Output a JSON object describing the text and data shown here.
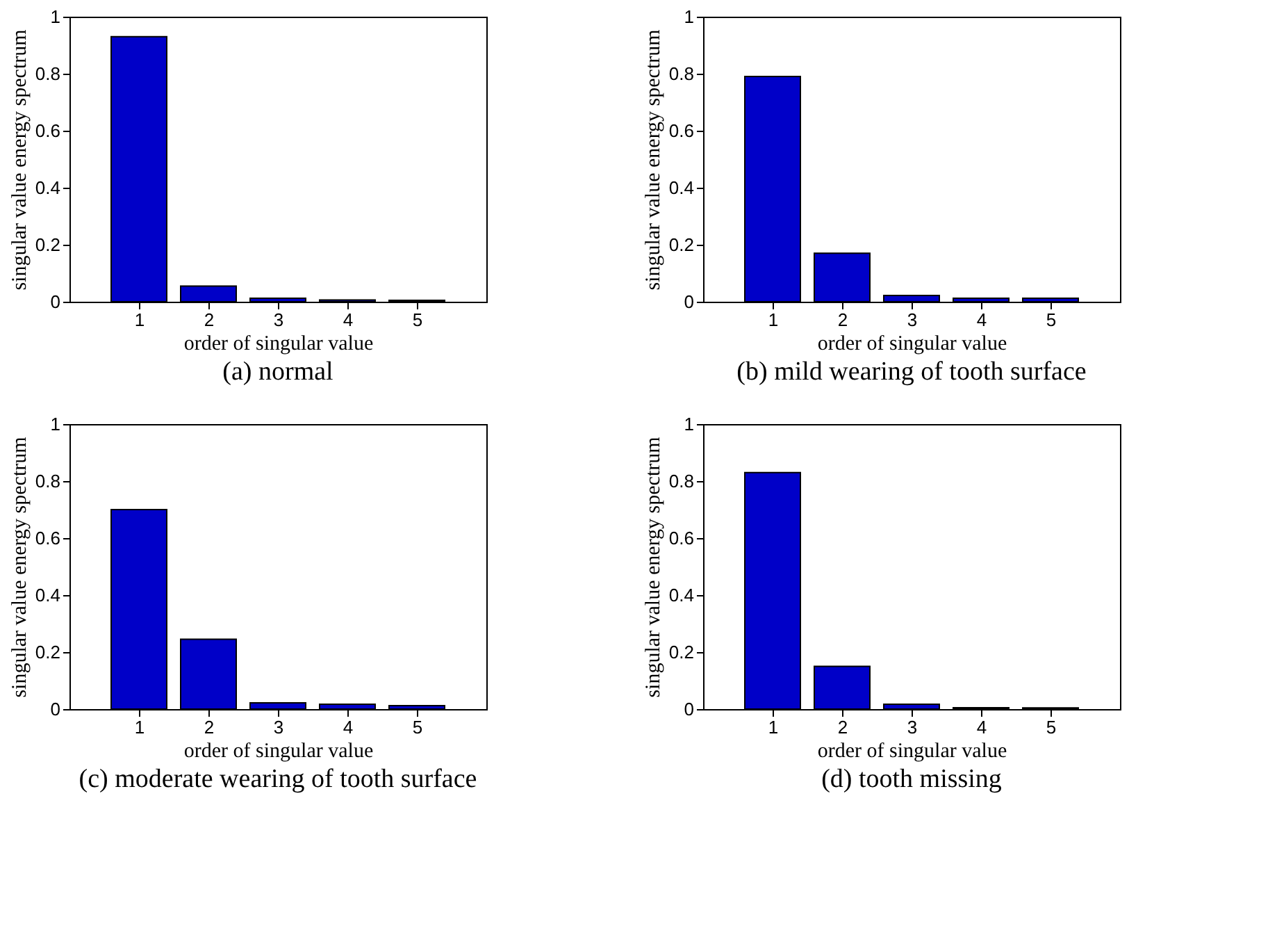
{
  "chart_data": [
    {
      "type": "bar",
      "title": "(a) normal",
      "xlabel": "order of singular value",
      "ylabel": "singular value energy spectrum",
      "x": [
        1,
        2,
        3,
        4,
        5
      ],
      "values": [
        0.93,
        0.055,
        0.012,
        0.006,
        0.005
      ],
      "color": "#0000c8",
      "xlim": [
        0,
        6
      ],
      "xticks": [
        1,
        2,
        3,
        4,
        5
      ],
      "ylim": [
        0,
        1
      ],
      "yticks": [
        0,
        0.2,
        0.4,
        0.6,
        0.8,
        1
      ],
      "grid": false
    },
    {
      "type": "bar",
      "title": "(b) mild wearing of tooth surface",
      "xlabel": "order of singular value",
      "ylabel": "singular value energy spectrum",
      "x": [
        1,
        2,
        3,
        4,
        5
      ],
      "values": [
        0.79,
        0.17,
        0.022,
        0.012,
        0.012
      ],
      "color": "#0000c8",
      "xlim": [
        0,
        6
      ],
      "xticks": [
        1,
        2,
        3,
        4,
        5
      ],
      "ylim": [
        0,
        1
      ],
      "yticks": [
        0,
        0.2,
        0.4,
        0.6,
        0.8,
        1
      ],
      "grid": false
    },
    {
      "type": "bar",
      "title": "(c) moderate wearing of tooth surface",
      "xlabel": "order of singular value",
      "ylabel": "singular value energy spectrum",
      "x": [
        1,
        2,
        3,
        4,
        5
      ],
      "values": [
        0.7,
        0.245,
        0.022,
        0.017,
        0.012
      ],
      "color": "#0000c8",
      "xlim": [
        0,
        6
      ],
      "xticks": [
        1,
        2,
        3,
        4,
        5
      ],
      "ylim": [
        0,
        1
      ],
      "yticks": [
        0,
        0.2,
        0.4,
        0.6,
        0.8,
        1
      ],
      "grid": false
    },
    {
      "type": "bar",
      "title": "(d) tooth missing",
      "xlabel": "order of singular value",
      "ylabel": "singular value energy spectrum",
      "x": [
        1,
        2,
        3,
        4,
        5
      ],
      "values": [
        0.83,
        0.15,
        0.017,
        0.005,
        0.004
      ],
      "color": "#0000c8",
      "xlim": [
        0,
        6
      ],
      "xticks": [
        1,
        2,
        3,
        4,
        5
      ],
      "ylim": [
        0,
        1
      ],
      "yticks": [
        0,
        0.2,
        0.4,
        0.6,
        0.8,
        1
      ],
      "grid": false
    }
  ]
}
